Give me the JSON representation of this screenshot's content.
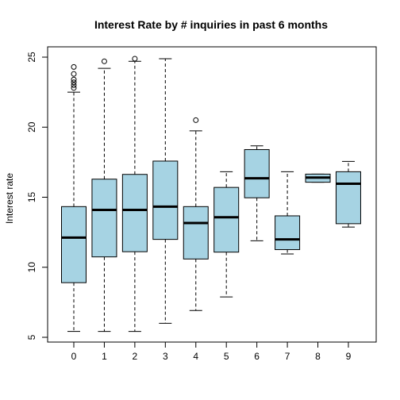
{
  "chart_data": {
    "type": "boxplot",
    "title": "Interest Rate by # inquiries in past 6 months",
    "xlabel": "",
    "ylabel": "Interest rate",
    "ylim": [
      4.5,
      26
    ],
    "yticks": [
      5,
      10,
      15,
      20,
      25
    ],
    "box_color": "#a6d3e3",
    "categories": [
      "0",
      "1",
      "2",
      "3",
      "4",
      "5",
      "6",
      "7",
      "8",
      "9"
    ],
    "boxes": [
      {
        "category": "0",
        "whisker_low": 5.42,
        "q1": 8.9,
        "median": 12.12,
        "q3": 14.33,
        "whisker_high": 22.5,
        "outliers": [
          22.8,
          23.0,
          23.2,
          23.4,
          23.8,
          24.3
        ]
      },
      {
        "category": "1",
        "whisker_low": 5.42,
        "q1": 10.74,
        "median": 14.09,
        "q3": 16.29,
        "whisker_high": 24.2,
        "outliers": [
          24.7
        ]
      },
      {
        "category": "2",
        "whisker_low": 5.42,
        "q1": 11.11,
        "median": 14.09,
        "q3": 16.63,
        "whisker_high": 24.7,
        "outliers": [
          24.89
        ]
      },
      {
        "category": "3",
        "whisker_low": 6.0,
        "q1": 11.99,
        "median": 14.33,
        "q3": 17.58,
        "whisker_high": 24.89,
        "outliers": []
      },
      {
        "category": "4",
        "whisker_low": 6.91,
        "q1": 10.59,
        "median": 13.16,
        "q3": 14.33,
        "whisker_high": 19.74,
        "outliers": [
          20.5
        ]
      },
      {
        "category": "5",
        "whisker_low": 7.88,
        "q1": 11.08,
        "median": 13.57,
        "q3": 15.7,
        "whisker_high": 16.82,
        "outliers": []
      },
      {
        "category": "6",
        "whisker_low": 11.89,
        "q1": 14.96,
        "median": 16.35,
        "q3": 18.4,
        "whisker_high": 18.67,
        "outliers": []
      },
      {
        "category": "7",
        "whisker_low": 10.95,
        "q1": 11.26,
        "median": 11.99,
        "q3": 13.67,
        "whisker_high": 16.82,
        "outliers": []
      },
      {
        "category": "8",
        "whisker_low": 16.07,
        "q1": 16.07,
        "median": 16.4,
        "q3": 16.65,
        "whisker_high": 16.65,
        "outliers": []
      },
      {
        "category": "9",
        "whisker_low": 12.87,
        "q1": 13.11,
        "median": 15.96,
        "q3": 16.82,
        "whisker_high": 17.56,
        "outliers": []
      }
    ]
  }
}
